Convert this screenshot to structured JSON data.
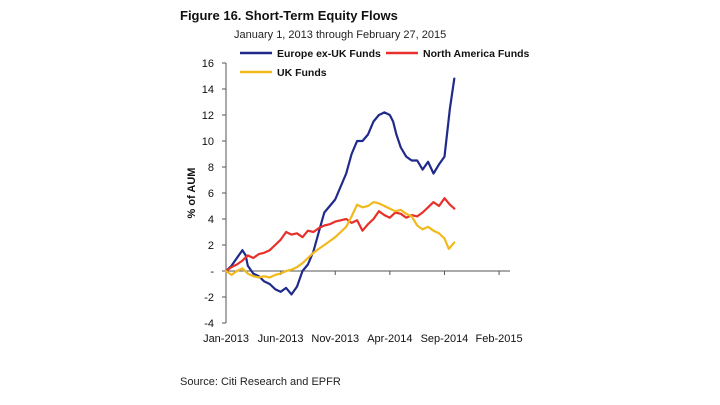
{
  "figure": {
    "title": "Figure 16. Short-Term Equity Flows",
    "subtitle": "January 1, 2013 through February 27, 2015",
    "source": "Source: Citi Research and EPFR"
  },
  "colors": {
    "europe": "#1f2a8a",
    "north_america": "#e8302a",
    "uk": "#f2b91c",
    "axis": "#555555"
  },
  "chart_data": {
    "type": "line",
    "title": "Figure 16. Short-Term Equity Flows",
    "subtitle": "January 1, 2013 through February 27, 2015",
    "xlabel": "",
    "ylabel": "% of AUM",
    "xlim": [
      0,
      26
    ],
    "ylim": [
      -4,
      16
    ],
    "yticks": [
      -4,
      -2,
      0,
      2,
      4,
      6,
      8,
      10,
      12,
      14,
      16
    ],
    "ytick_labels": [
      "-4",
      "-2",
      "-",
      "2",
      "4",
      "6",
      "8",
      "10",
      "12",
      "14",
      "16"
    ],
    "xticks": [
      {
        "x": 0,
        "label": "Jan-2013"
      },
      {
        "x": 5,
        "label": "Jun-2013"
      },
      {
        "x": 10,
        "label": "Nov-2013"
      },
      {
        "x": 15,
        "label": "Apr-2014"
      },
      {
        "x": 20,
        "label": "Sep-2014"
      },
      {
        "x": 25,
        "label": "Feb-2015"
      }
    ],
    "legend": "top",
    "grid": false,
    "series": [
      {
        "name": "Europe ex-UK Funds",
        "color": "#1f2a8a",
        "points": [
          [
            0,
            0
          ],
          [
            0.5,
            0.4
          ],
          [
            1,
            1.0
          ],
          [
            1.5,
            1.6
          ],
          [
            1.8,
            1.2
          ],
          [
            2,
            0.4
          ],
          [
            2.5,
            -0.2
          ],
          [
            3,
            -0.4
          ],
          [
            3.5,
            -0.8
          ],
          [
            4,
            -1.0
          ],
          [
            4.5,
            -1.4
          ],
          [
            5,
            -1.6
          ],
          [
            5.5,
            -1.3
          ],
          [
            6,
            -1.8
          ],
          [
            6.5,
            -1.2
          ],
          [
            7,
            0
          ],
          [
            7.5,
            0.5
          ],
          [
            8,
            1.5
          ],
          [
            8.5,
            3
          ],
          [
            9,
            4.5
          ],
          [
            9.5,
            5
          ],
          [
            10,
            5.5
          ],
          [
            10.5,
            6.5
          ],
          [
            11,
            7.5
          ],
          [
            11.5,
            9
          ],
          [
            12,
            10
          ],
          [
            12.5,
            10
          ],
          [
            13,
            10.5
          ],
          [
            13.5,
            11.5
          ],
          [
            14,
            12
          ],
          [
            14.5,
            12.2
          ],
          [
            15,
            12.0
          ],
          [
            15.3,
            11.5
          ],
          [
            15.6,
            10.5
          ],
          [
            16,
            9.5
          ],
          [
            16.5,
            8.8
          ],
          [
            17,
            8.5
          ],
          [
            17.5,
            8.5
          ],
          [
            18,
            7.8
          ],
          [
            18.5,
            8.4
          ],
          [
            19,
            7.5
          ],
          [
            19.5,
            8.2
          ],
          [
            20,
            8.8
          ],
          [
            20.5,
            12.5
          ],
          [
            20.9,
            14.8
          ]
        ]
      },
      {
        "name": "North America Funds",
        "color": "#e8302a",
        "points": [
          [
            0,
            0
          ],
          [
            0.5,
            0.3
          ],
          [
            1,
            0.5
          ],
          [
            1.5,
            0.8
          ],
          [
            2,
            1.2
          ],
          [
            2.5,
            1.0
          ],
          [
            3,
            1.3
          ],
          [
            3.5,
            1.4
          ],
          [
            4,
            1.6
          ],
          [
            4.5,
            2.0
          ],
          [
            5,
            2.4
          ],
          [
            5.5,
            3.0
          ],
          [
            6,
            2.8
          ],
          [
            6.5,
            2.9
          ],
          [
            7,
            2.6
          ],
          [
            7.5,
            3.1
          ],
          [
            8,
            3.0
          ],
          [
            8.5,
            3.3
          ],
          [
            9,
            3.5
          ],
          [
            9.5,
            3.6
          ],
          [
            10,
            3.8
          ],
          [
            10.5,
            3.9
          ],
          [
            11,
            4.0
          ],
          [
            11.5,
            3.7
          ],
          [
            12,
            3.9
          ],
          [
            12.5,
            3.1
          ],
          [
            13,
            3.6
          ],
          [
            13.5,
            4.0
          ],
          [
            14,
            4.6
          ],
          [
            14.5,
            4.3
          ],
          [
            15,
            4.1
          ],
          [
            15.5,
            4.5
          ],
          [
            16,
            4.4
          ],
          [
            16.5,
            4.1
          ],
          [
            17,
            4.3
          ],
          [
            17.5,
            4.2
          ],
          [
            18,
            4.5
          ],
          [
            18.5,
            4.9
          ],
          [
            19,
            5.3
          ],
          [
            19.5,
            5.0
          ],
          [
            20,
            5.6
          ],
          [
            20.5,
            5.1
          ],
          [
            20.9,
            4.8
          ]
        ]
      },
      {
        "name": "UK Funds",
        "color": "#f2b91c",
        "points": [
          [
            0,
            0
          ],
          [
            0.5,
            -0.3
          ],
          [
            1,
            0
          ],
          [
            1.5,
            0.2
          ],
          [
            2,
            -0.2
          ],
          [
            2.5,
            -0.4
          ],
          [
            3,
            -0.5
          ],
          [
            3.5,
            -0.4
          ],
          [
            4,
            -0.5
          ],
          [
            4.5,
            -0.3
          ],
          [
            5,
            -0.2
          ],
          [
            5.5,
            0
          ],
          [
            6,
            0.1
          ],
          [
            6.5,
            0.3
          ],
          [
            7,
            0.6
          ],
          [
            7.5,
            1.0
          ],
          [
            8,
            1.4
          ],
          [
            8.5,
            1.7
          ],
          [
            9,
            2.0
          ],
          [
            9.5,
            2.3
          ],
          [
            10,
            2.6
          ],
          [
            10.5,
            3.0
          ],
          [
            11,
            3.4
          ],
          [
            11.5,
            4.2
          ],
          [
            12,
            5.1
          ],
          [
            12.5,
            4.9
          ],
          [
            13,
            5.0
          ],
          [
            13.5,
            5.3
          ],
          [
            14,
            5.2
          ],
          [
            14.5,
            5.0
          ],
          [
            15,
            4.8
          ],
          [
            15.5,
            4.6
          ],
          [
            16,
            4.7
          ],
          [
            16.5,
            4.4
          ],
          [
            17,
            4.2
          ],
          [
            17.5,
            3.5
          ],
          [
            18,
            3.2
          ],
          [
            18.5,
            3.4
          ],
          [
            19,
            3.1
          ],
          [
            19.5,
            2.9
          ],
          [
            20,
            2.5
          ],
          [
            20.4,
            1.7
          ],
          [
            20.9,
            2.2
          ]
        ]
      }
    ]
  }
}
